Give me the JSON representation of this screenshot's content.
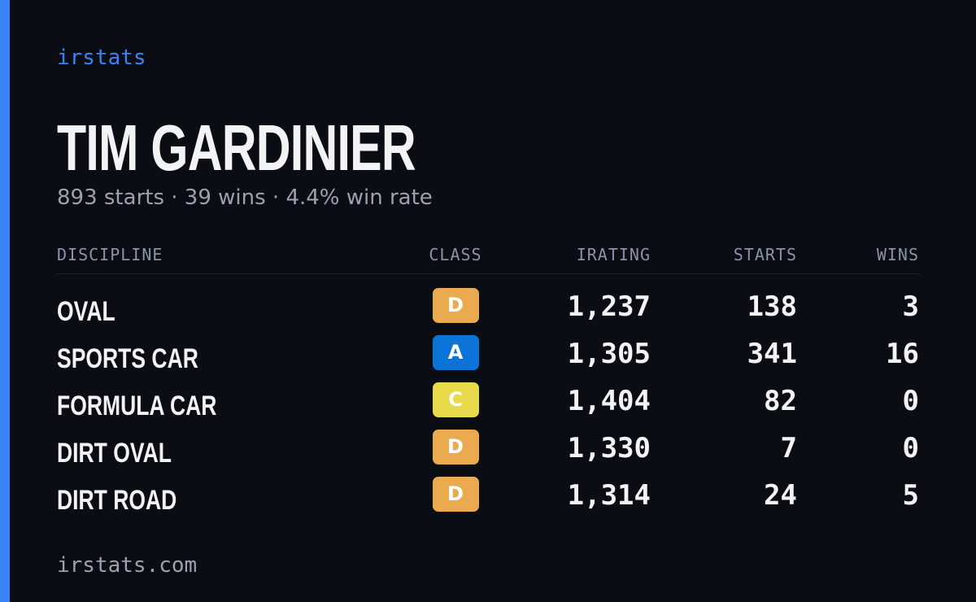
{
  "header": {
    "brand": "irstats",
    "name": "TIM GARDINIER",
    "summary": "893 starts · 39 wins · 4.4% win rate"
  },
  "table": {
    "columns": [
      "DISCIPLINE",
      "CLASS",
      "IRATING",
      "STARTS",
      "WINS"
    ],
    "rows": [
      {
        "discipline": "OVAL",
        "class": "D",
        "irating": "1,237",
        "starts": "138",
        "wins": "3"
      },
      {
        "discipline": "SPORTS CAR",
        "class": "A",
        "irating": "1,305",
        "starts": "341",
        "wins": "16"
      },
      {
        "discipline": "FORMULA CAR",
        "class": "C",
        "irating": "1,404",
        "starts": "82",
        "wins": "0"
      },
      {
        "discipline": "DIRT OVAL",
        "class": "D",
        "irating": "1,330",
        "starts": "7",
        "wins": "0"
      },
      {
        "discipline": "DIRT ROAD",
        "class": "D",
        "irating": "1,314",
        "starts": "24",
        "wins": "5"
      }
    ],
    "class_colors": {
      "A": "#0a74d8",
      "C": "#e8da4a",
      "D": "#eaaa4f"
    }
  },
  "footer": {
    "site": "irstats.com"
  }
}
